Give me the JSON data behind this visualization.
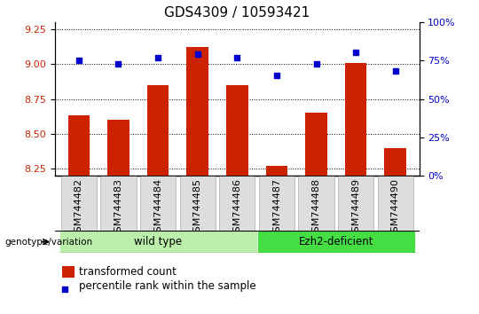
{
  "title": "GDS4309 / 10593421",
  "samples": [
    "GSM744482",
    "GSM744483",
    "GSM744484",
    "GSM744485",
    "GSM744486",
    "GSM744487",
    "GSM744488",
    "GSM744489",
    "GSM744490"
  ],
  "transformed_count": [
    8.63,
    8.6,
    8.85,
    9.12,
    8.85,
    8.27,
    8.65,
    9.01,
    8.4
  ],
  "percentile_rank": [
    75,
    73,
    77,
    79,
    77,
    65,
    73,
    80,
    68
  ],
  "ylim_left": [
    8.2,
    9.3
  ],
  "ylim_right": [
    0,
    100
  ],
  "yticks_left": [
    8.25,
    8.5,
    8.75,
    9.0,
    9.25
  ],
  "yticks_right": [
    0,
    25,
    50,
    75,
    100
  ],
  "bar_color": "#cc2200",
  "dot_color": "#0000cc",
  "wt_color": "#bbeeaa",
  "ez_color": "#44dd44",
  "wt_label": "wild type",
  "ez_label": "Ezh2-deficient",
  "wt_samples": 5,
  "ez_samples": 4,
  "genotype_label": "genotype/variation",
  "legend_bar_label": "transformed count",
  "legend_dot_label": "percentile rank within the sample",
  "left_tick_color": "#cc2200",
  "right_tick_color": "#0000cc",
  "title_fontsize": 11,
  "tick_fontsize": 8,
  "label_fontsize": 8.5
}
